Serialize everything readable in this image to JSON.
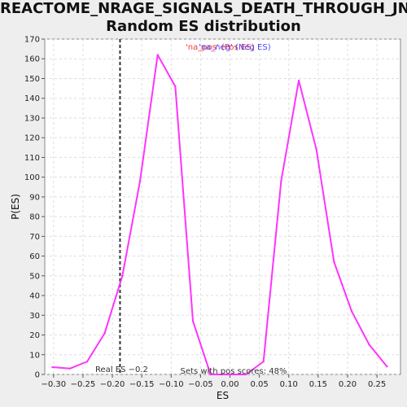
{
  "chart_data": {
    "type": "line",
    "title": [
      "REACTOME_NRAGE_SIGNALS_DEATH_THROUGH_JNK:",
      "Random ES distribution"
    ],
    "xlabel": "ES",
    "ylabel": "P(ES)",
    "xlim": [
      -0.315,
      0.29
    ],
    "ylim": [
      0,
      170
    ],
    "xticks": [
      -0.3,
      -0.25,
      -0.2,
      -0.15,
      -0.1,
      -0.05,
      0.0,
      0.05,
      0.1,
      0.15,
      0.2,
      0.25
    ],
    "xtick_labels": [
      "−0.30",
      "−0.25",
      "−0.20",
      "−0.15",
      "−0.10",
      "−0.05",
      "0.00",
      "0.05",
      "0.10",
      "0.15",
      "0.20",
      "0.25"
    ],
    "yticks": [
      0,
      10,
      20,
      30,
      40,
      50,
      60,
      70,
      80,
      90,
      100,
      110,
      120,
      130,
      140,
      150,
      160,
      170
    ],
    "grid": true,
    "series": [
      {
        "color": "#ff33ff",
        "x": [
          -0.302,
          -0.272,
          -0.243,
          -0.213,
          -0.183,
          -0.153,
          -0.123,
          -0.093,
          -0.063,
          -0.033,
          -0.003,
          0.027,
          0.057,
          0.087,
          0.117,
          0.147,
          0.177,
          0.207,
          0.237,
          0.267
        ],
        "y": [
          3.7,
          3,
          6.5,
          21,
          50,
          98,
          162,
          146,
          27,
          0,
          0,
          0,
          6.5,
          98,
          149,
          114,
          57,
          32,
          15,
          4
        ]
      }
    ],
    "real_es": {
      "x": -0.187,
      "label": "Real ES −0.2",
      "color": "#333333"
    },
    "legend_overlap": [
      {
        "text": "'na_pos' (Pos ES)",
        "color": "#ff3333"
      },
      {
        "text": "'na_neg' (Neg ES)",
        "color": "#3333ff"
      }
    ],
    "annotation": "Sets with pos scores: 48%"
  }
}
